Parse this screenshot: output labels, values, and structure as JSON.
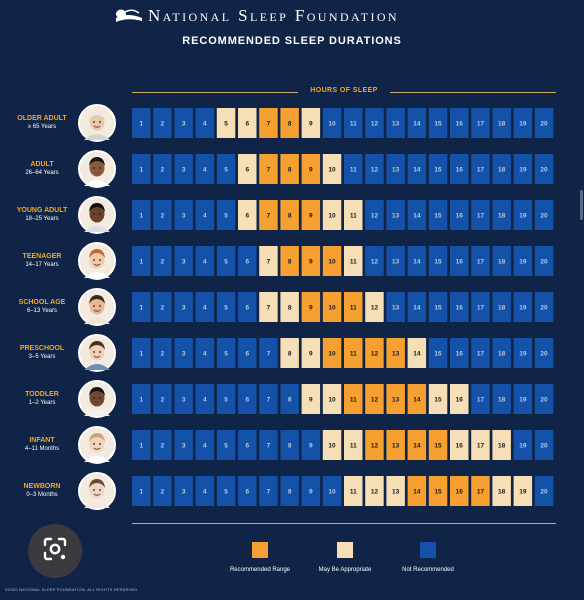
{
  "header": {
    "brand": "National Sleep Foundation",
    "title": "RECOMMENDED SLEEP DURATIONS"
  },
  "axis_label": "HOURS OF SLEEP",
  "colors": {
    "background": "#0f2446",
    "recommended": "#f5a030",
    "may_be_appropriate": "#f6dfb7",
    "not_recommended": "#1352a8",
    "accent_text": "#f5a623"
  },
  "groups": [
    {
      "name": "OLDER ADULT",
      "range": "≥ 65 Years",
      "icon": "older-adult-portrait-icon"
    },
    {
      "name": "ADULT",
      "range": "26–64 Years",
      "icon": "adult-portrait-icon"
    },
    {
      "name": "YOUNG ADULT",
      "range": "18–25 Years",
      "icon": "young-adult-portrait-icon"
    },
    {
      "name": "TEENAGER",
      "range": "14–17 Years",
      "icon": "teenager-portrait-icon"
    },
    {
      "name": "SCHOOL AGE",
      "range": "6–13 Years",
      "icon": "school-age-portrait-icon"
    },
    {
      "name": "PRESCHOOL",
      "range": "3–5 Years",
      "icon": "preschool-portrait-icon"
    },
    {
      "name": "TODDLER",
      "range": "1–2 Years",
      "icon": "toddler-portrait-icon"
    },
    {
      "name": "INFANT",
      "range": "4–11 Months",
      "icon": "infant-portrait-icon"
    },
    {
      "name": "NEWBORN",
      "range": "0–3 Months",
      "icon": "newborn-portrait-icon"
    }
  ],
  "chart_data": {
    "type": "heatmap",
    "x": [
      1,
      2,
      3,
      4,
      5,
      6,
      7,
      8,
      9,
      10,
      11,
      12,
      13,
      14,
      15,
      16,
      17,
      18,
      19,
      20
    ],
    "xlabel": "HOURS OF SLEEP",
    "rows": [
      {
        "group": "OLDER ADULT",
        "recommended": [
          7,
          8
        ],
        "may_be_appropriate": [
          5,
          6,
          9
        ]
      },
      {
        "group": "ADULT",
        "recommended": [
          7,
          8,
          9
        ],
        "may_be_appropriate": [
          6,
          10
        ]
      },
      {
        "group": "YOUNG ADULT",
        "recommended": [
          7,
          8,
          9
        ],
        "may_be_appropriate": [
          6,
          10,
          11
        ]
      },
      {
        "group": "TEENAGER",
        "recommended": [
          8,
          9,
          10
        ],
        "may_be_appropriate": [
          7,
          11
        ]
      },
      {
        "group": "SCHOOL AGE",
        "recommended": [
          9,
          10,
          11
        ],
        "may_be_appropriate": [
          7,
          8,
          12
        ]
      },
      {
        "group": "PRESCHOOL",
        "recommended": [
          10,
          11,
          12,
          13
        ],
        "may_be_appropriate": [
          8,
          9,
          14
        ]
      },
      {
        "group": "TODDLER",
        "recommended": [
          11,
          12,
          13,
          14
        ],
        "may_be_appropriate": [
          9,
          10,
          15,
          16
        ]
      },
      {
        "group": "INFANT",
        "recommended": [
          12,
          13,
          14,
          15
        ],
        "may_be_appropriate": [
          10,
          11,
          16,
          17,
          18
        ]
      },
      {
        "group": "NEWBORN",
        "recommended": [
          14,
          15,
          16,
          17
        ],
        "may_be_appropriate": [
          11,
          12,
          13,
          18,
          19
        ]
      }
    ]
  },
  "legend": [
    {
      "label": "Recommended Range",
      "color": "#f5a030"
    },
    {
      "label": "May Be Appropriate",
      "color": "#f6dfb7"
    },
    {
      "label": "Not Recommended",
      "color": "#1352a8"
    }
  ],
  "copyright": "©2020 NATIONAL SLEEP FOUNDATION. ALL RIGHTS RESERVED."
}
